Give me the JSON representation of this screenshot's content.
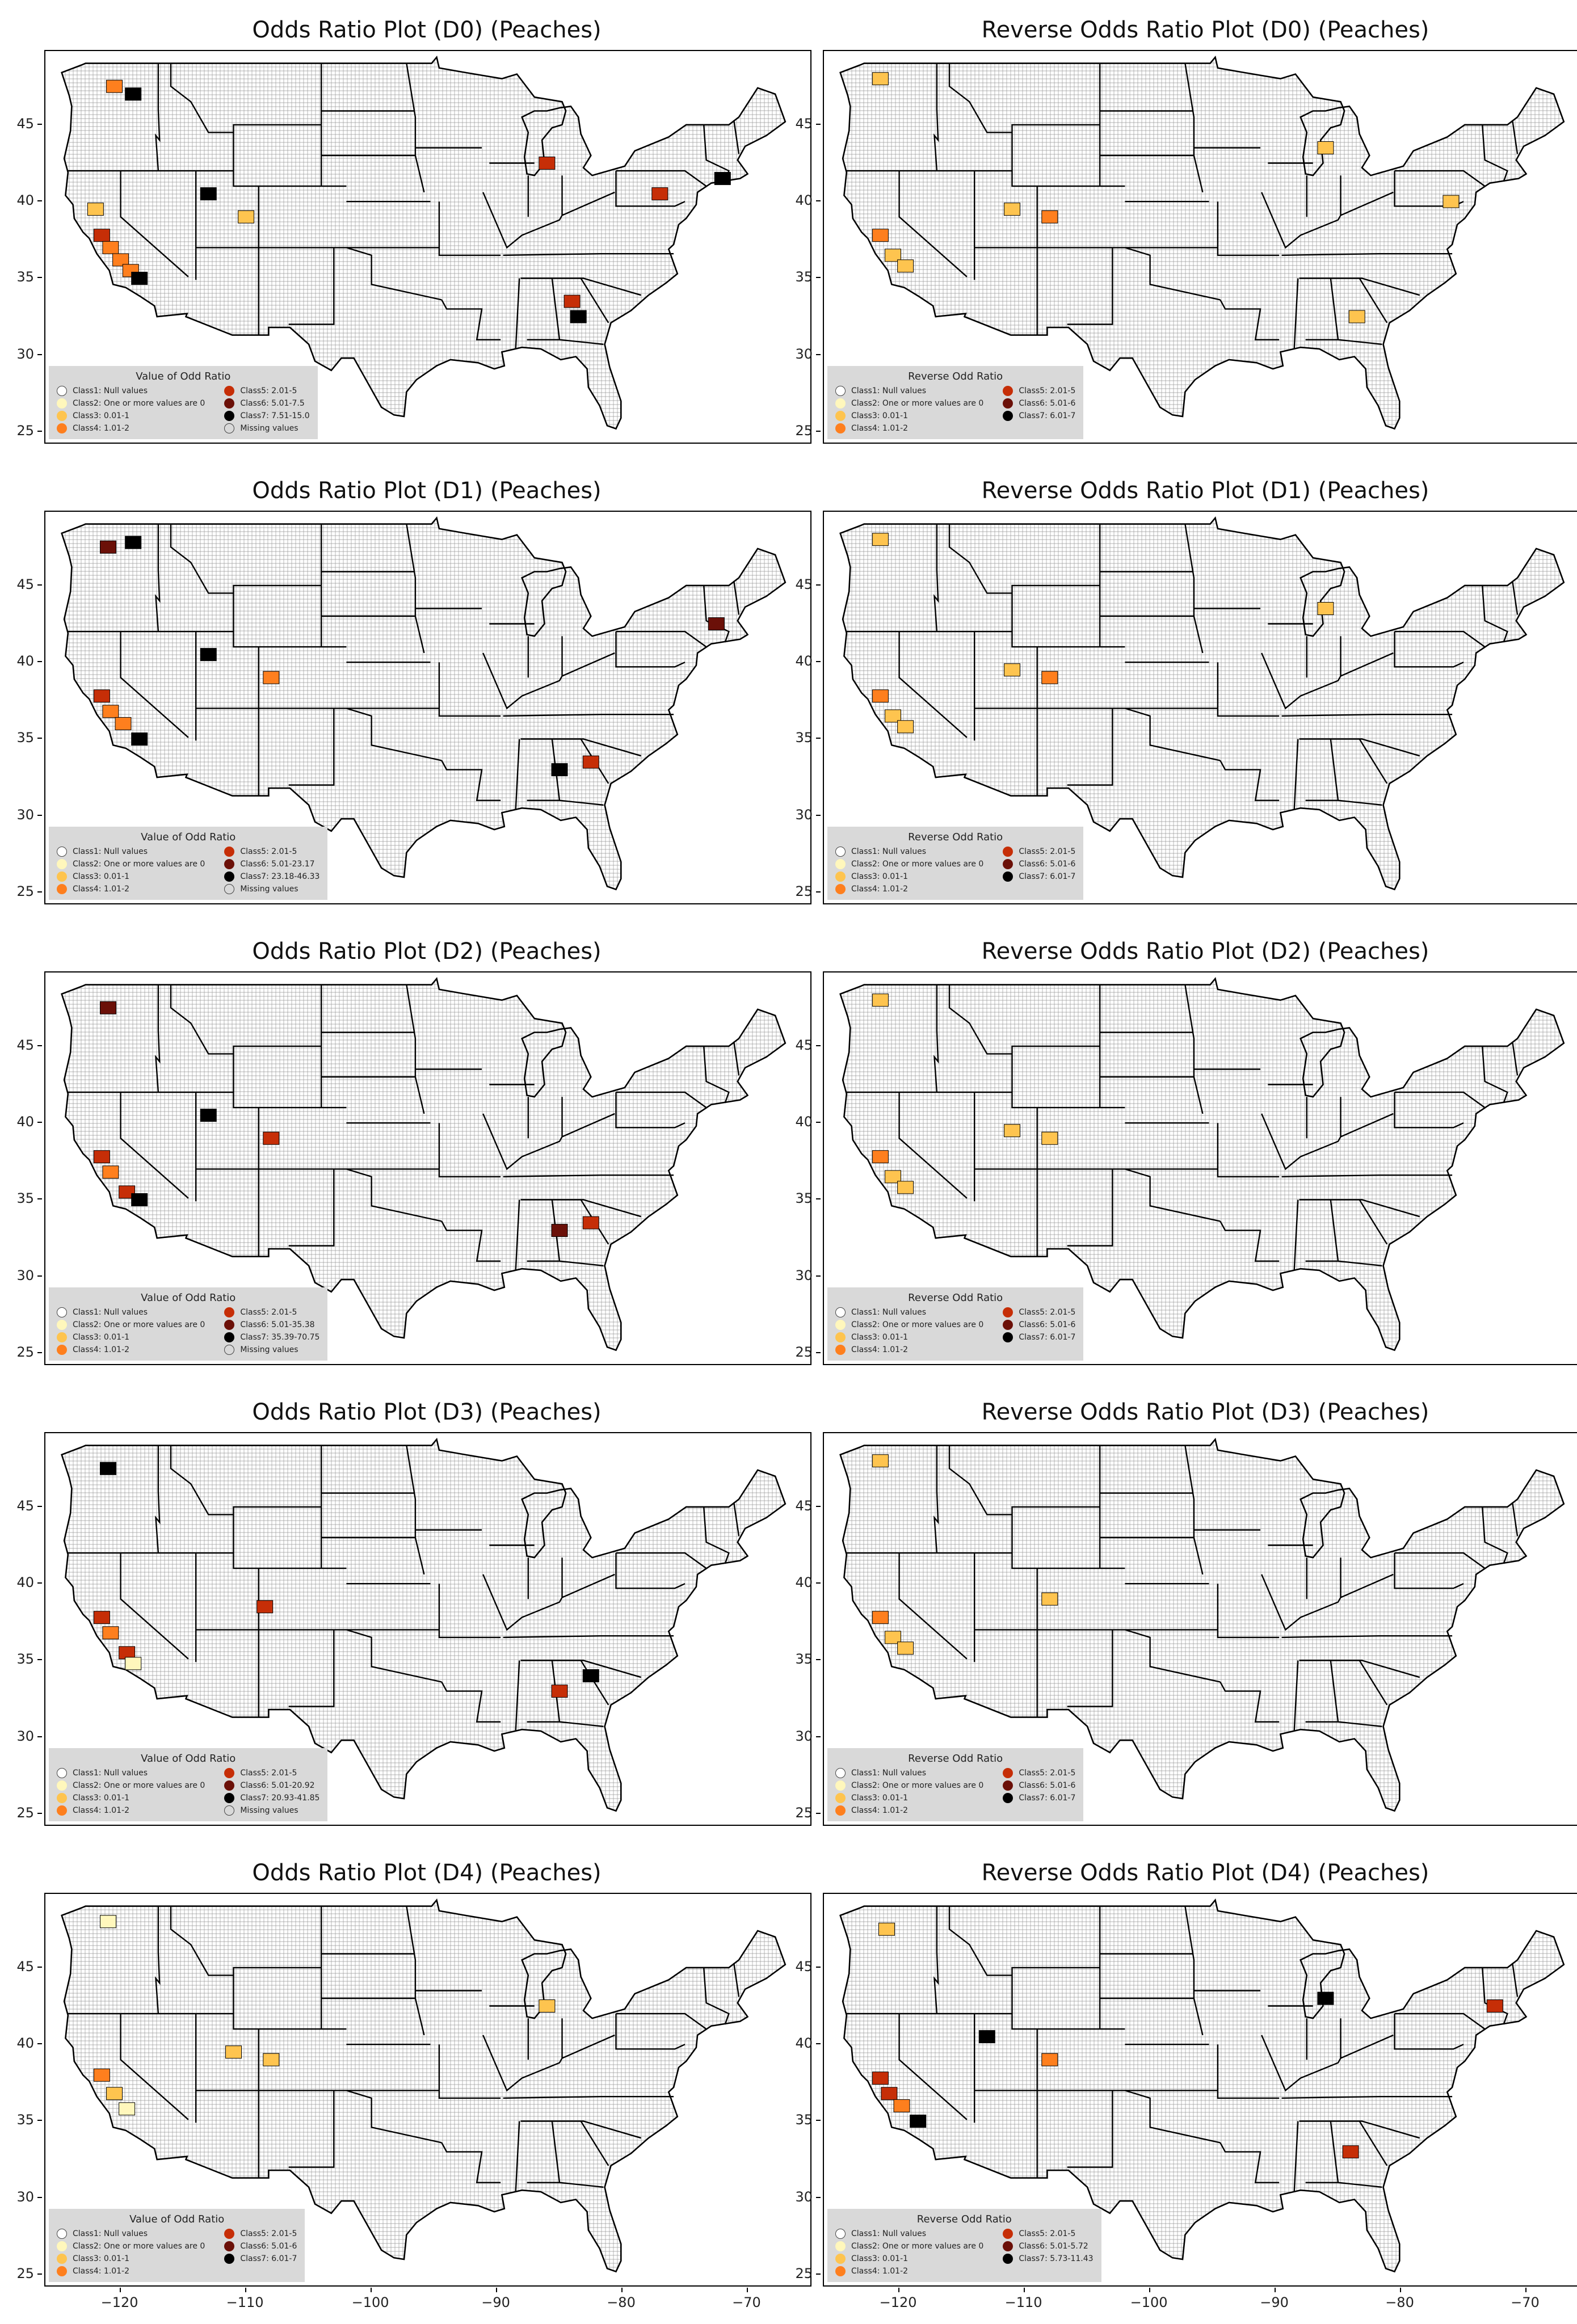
{
  "colors": {
    "class1": "#ffffff",
    "class2": "#fff7bc",
    "class3": "#fec44f",
    "class4": "#fe7f1e",
    "class5": "#c62e07",
    "class6": "#6b1008",
    "class7": "#000000",
    "missing": "#d9d9d9"
  },
  "axis": {
    "y_ticks": [
      "45",
      "40",
      "35",
      "30",
      "25"
    ],
    "x_ticks": [
      "−120",
      "−110",
      "−100",
      "−90",
      "−80",
      "−70"
    ]
  },
  "panels": [
    {
      "title": "Odds Ratio Plot (D0) (Peaches)",
      "legend_title": "Value of Odd Ratio",
      "legend": [
        "Class1: Null values",
        "Class2: One or more values are 0",
        "Class3: 0.01-1",
        "Class4: 1.01-2",
        "Class5: 2.01-5",
        "Class6: 5.01-7.5",
        "Class7: 7.51-15.0",
        "Missing values"
      ]
    },
    {
      "title": "Reverse Odds Ratio Plot (D0) (Peaches)",
      "legend_title": "Reverse Odd Ratio",
      "legend": [
        "Class1: Null values",
        "Class2: One or more values are 0",
        "Class3: 0.01-1",
        "Class4: 1.01-2",
        "Class5: 2.01-5",
        "Class6: 5.01-6",
        "Class7: 6.01-7"
      ]
    },
    {
      "title": "Odds Ratio Plot (D1) (Peaches)",
      "legend_title": "Value of Odd Ratio",
      "legend": [
        "Class1: Null values",
        "Class2: One or more values are 0",
        "Class3: 0.01-1",
        "Class4: 1.01-2",
        "Class5: 2.01-5",
        "Class6: 5.01-23.17",
        "Class7: 23.18-46.33",
        "Missing values"
      ]
    },
    {
      "title": "Reverse Odds Ratio Plot (D1) (Peaches)",
      "legend_title": "Reverse Odd Ratio",
      "legend": [
        "Class1: Null values",
        "Class2: One or more values are 0",
        "Class3: 0.01-1",
        "Class4: 1.01-2",
        "Class5: 2.01-5",
        "Class6: 5.01-6",
        "Class7: 6.01-7"
      ]
    },
    {
      "title": "Odds Ratio Plot (D2) (Peaches)",
      "legend_title": "Value of Odd Ratio",
      "legend": [
        "Class1: Null values",
        "Class2: One or more values are 0",
        "Class3: 0.01-1",
        "Class4: 1.01-2",
        "Class5: 2.01-5",
        "Class6: 5.01-35.38",
        "Class7: 35.39-70.75",
        "Missing values"
      ]
    },
    {
      "title": "Reverse Odds Ratio Plot (D2) (Peaches)",
      "legend_title": "Reverse Odd Ratio",
      "legend": [
        "Class1: Null values",
        "Class2: One or more values are 0",
        "Class3: 0.01-1",
        "Class4: 1.01-2",
        "Class5: 2.01-5",
        "Class6: 5.01-6",
        "Class7: 6.01-7"
      ]
    },
    {
      "title": "Odds Ratio Plot (D3) (Peaches)",
      "legend_title": "Value of Odd Ratio",
      "legend": [
        "Class1: Null values",
        "Class2: One or more values are 0",
        "Class3: 0.01-1",
        "Class4: 1.01-2",
        "Class5: 2.01-5",
        "Class6: 5.01-20.92",
        "Class7: 20.93-41.85",
        "Missing values"
      ]
    },
    {
      "title": "Reverse Odds Ratio Plot (D3) (Peaches)",
      "legend_title": "Reverse Odd Ratio",
      "legend": [
        "Class1: Null values",
        "Class2: One or more values are 0",
        "Class3: 0.01-1",
        "Class4: 1.01-2",
        "Class5: 2.01-5",
        "Class6: 5.01-6",
        "Class7: 6.01-7"
      ]
    },
    {
      "title": "Odds Ratio Plot (D4) (Peaches)",
      "legend_title": "Value of Odd Ratio",
      "legend": [
        "Class1: Null values",
        "Class2: One or more values are 0",
        "Class3: 0.01-1",
        "Class4: 1.01-2",
        "Class5: 2.01-5",
        "Class6: 5.01-6",
        "Class7: 6.01-7"
      ]
    },
    {
      "title": "Reverse Odds Ratio Plot (D4) (Peaches)",
      "legend_title": "Reverse Odd Ratio",
      "legend": [
        "Class1: Null values",
        "Class2: One or more values are 0",
        "Class3: 0.01-1",
        "Class4: 1.01-2",
        "Class5: 2.01-5",
        "Class6: 5.01-5.72",
        "Class7: 5.73-11.43"
      ]
    }
  ]
}
